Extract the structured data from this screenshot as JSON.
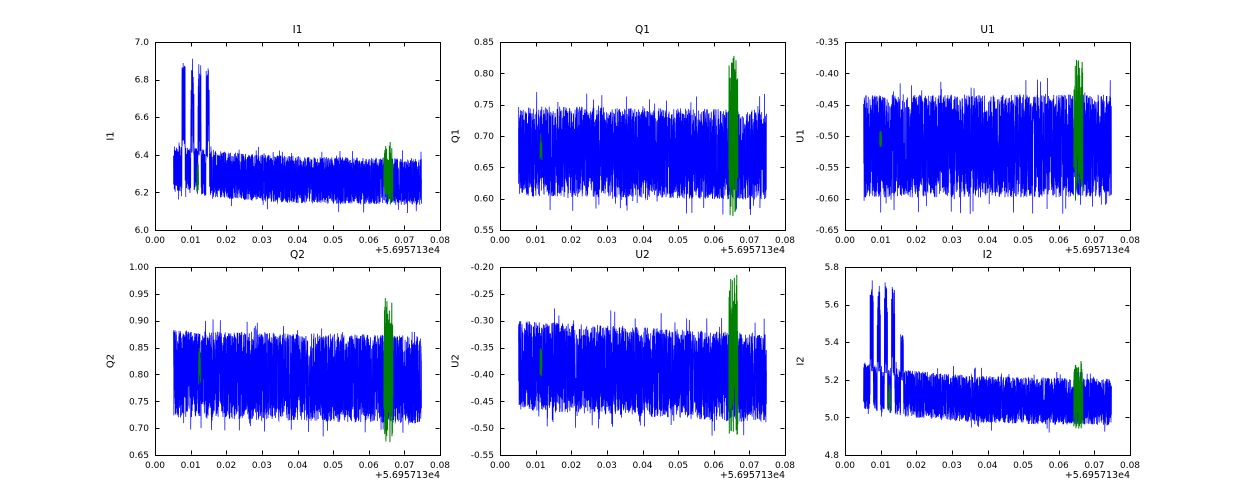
{
  "page": {
    "background": "#ffffff"
  },
  "figure": {
    "axes_color": "#000000",
    "series_color": "#0000ff",
    "event_color": "#007f00",
    "x_axis": {
      "lim": [
        0.0,
        0.08
      ],
      "tick_values": [
        0.0,
        0.01,
        0.02,
        0.03,
        0.04,
        0.05,
        0.06,
        0.07,
        0.08
      ],
      "tick_labels": [
        "0.00",
        "0.01",
        "0.02",
        "0.03",
        "0.04",
        "0.05",
        "0.06",
        "0.07",
        "0.08"
      ],
      "offset_label": "+5.695713e4"
    }
  },
  "chart_data": [
    {
      "id": "I1",
      "type": "line",
      "title": "I1",
      "ylabel": "I1",
      "ylim": [
        6.0,
        7.0
      ],
      "ytick_values": [
        6.0,
        6.2,
        6.4,
        6.6,
        6.8,
        7.0
      ],
      "ytick_labels": [
        "6.0",
        "6.2",
        "6.4",
        "6.6",
        "6.8",
        "7.0"
      ],
      "x_data_range": [
        0.0052,
        0.0748
      ],
      "seed": 101,
      "trend": {
        "kind": "decay",
        "y_start": 6.33,
        "y_end": 6.255,
        "tau": 0.02
      },
      "noise_amp": 0.125,
      "pulses": [
        {
          "x": 0.008,
          "w": 0.0009,
          "top": 6.9
        },
        {
          "x": 0.0105,
          "w": 0.0009,
          "top": 6.92
        },
        {
          "x": 0.0125,
          "w": 0.0009,
          "top": 6.9
        },
        {
          "x": 0.0148,
          "w": 0.0009,
          "top": 6.86
        }
      ],
      "green_events": [
        {
          "x": 0.012,
          "w": 0.0004,
          "ymin": 6.2,
          "ymax": 6.38
        },
        {
          "x": 0.0655,
          "w": 0.0025,
          "ymin": 6.13,
          "ymax": 6.47
        }
      ]
    },
    {
      "id": "Q1",
      "type": "line",
      "title": "Q1",
      "ylabel": "Q1",
      "ylim": [
        0.55,
        0.85
      ],
      "ytick_values": [
        0.55,
        0.6,
        0.65,
        0.7,
        0.75,
        0.8,
        0.85
      ],
      "ytick_labels": [
        "0.55",
        "0.60",
        "0.65",
        "0.70",
        "0.75",
        "0.80",
        "0.85"
      ],
      "x_data_range": [
        0.0052,
        0.0748
      ],
      "seed": 102,
      "trend": {
        "kind": "linear",
        "y_start": 0.676,
        "y_end": 0.67
      },
      "noise_amp": 0.072,
      "pulses": [],
      "green_events": [
        {
          "x": 0.0115,
          "w": 0.0005,
          "ymin": 0.655,
          "ymax": 0.705
        },
        {
          "x": 0.0655,
          "w": 0.0025,
          "ymin": 0.572,
          "ymax": 0.828
        }
      ]
    },
    {
      "id": "U1",
      "type": "line",
      "title": "U1",
      "ylabel": "U1",
      "ylim": [
        -0.65,
        -0.35
      ],
      "ytick_values": [
        -0.65,
        -0.6,
        -0.55,
        -0.5,
        -0.45,
        -0.4,
        -0.35
      ],
      "ytick_labels": [
        "-0.65",
        "-0.60",
        "-0.55",
        "-0.50",
        "-0.45",
        "-0.40",
        "-0.35"
      ],
      "x_data_range": [
        0.0052,
        0.0748
      ],
      "seed": 103,
      "trend": {
        "kind": "linear",
        "y_start": -0.516,
        "y_end": -0.516
      },
      "noise_amp": 0.082,
      "pulses": [],
      "green_events": [
        {
          "x": 0.01,
          "w": 0.0005,
          "ymin": -0.52,
          "ymax": -0.487
        },
        {
          "x": 0.0655,
          "w": 0.0025,
          "ymin": -0.605,
          "ymax": -0.378
        }
      ]
    },
    {
      "id": "Q2",
      "type": "line",
      "title": "Q2",
      "ylabel": "Q2",
      "ylim": [
        0.65,
        1.0
      ],
      "ytick_values": [
        0.65,
        0.7,
        0.75,
        0.8,
        0.85,
        0.9,
        0.95,
        1.0
      ],
      "ytick_labels": [
        "0.65",
        "0.70",
        "0.75",
        "0.80",
        "0.85",
        "0.90",
        "0.95",
        "1.00"
      ],
      "x_data_range": [
        0.0052,
        0.0748
      ],
      "seed": 104,
      "trend": {
        "kind": "linear",
        "y_start": 0.801,
        "y_end": 0.79
      },
      "noise_amp": 0.082,
      "pulses": [],
      "green_events": [
        {
          "x": 0.0125,
          "w": 0.0005,
          "ymin": 0.78,
          "ymax": 0.85
        },
        {
          "x": 0.0655,
          "w": 0.0025,
          "ymin": 0.672,
          "ymax": 0.958
        }
      ]
    },
    {
      "id": "U2",
      "type": "line",
      "title": "U2",
      "ylabel": "U2",
      "ylim": [
        -0.55,
        -0.2
      ],
      "ytick_values": [
        -0.55,
        -0.5,
        -0.45,
        -0.4,
        -0.35,
        -0.3,
        -0.25,
        -0.2
      ],
      "ytick_labels": [
        "-0.55",
        "-0.50",
        "-0.45",
        "-0.40",
        "-0.35",
        "-0.30",
        "-0.25",
        "-0.20"
      ],
      "x_data_range": [
        0.0052,
        0.0748
      ],
      "seed": 105,
      "trend": {
        "kind": "linear",
        "y_start": -0.383,
        "y_end": -0.408
      },
      "noise_amp": 0.083,
      "pulses": [],
      "green_events": [
        {
          "x": 0.0115,
          "w": 0.0005,
          "ymin": -0.405,
          "ymax": -0.345
        },
        {
          "x": 0.0655,
          "w": 0.0025,
          "ymin": -0.523,
          "ymax": -0.212
        }
      ]
    },
    {
      "id": "I2",
      "type": "line",
      "title": "I2",
      "ylabel": "I2",
      "ylim": [
        4.8,
        5.8
      ],
      "ytick_values": [
        4.8,
        5.0,
        5.2,
        5.4,
        5.6,
        5.8
      ],
      "ytick_labels": [
        "4.8",
        "5.0",
        "5.2",
        "5.4",
        "5.6",
        "5.8"
      ],
      "x_data_range": [
        0.0052,
        0.0748
      ],
      "seed": 106,
      "trend": {
        "kind": "decay",
        "y_start": 5.17,
        "y_end": 5.08,
        "tau": 0.02
      },
      "noise_amp": 0.125,
      "pulses": [
        {
          "x": 0.0075,
          "w": 0.0009,
          "top": 5.73
        },
        {
          "x": 0.0095,
          "w": 0.0009,
          "top": 5.72
        },
        {
          "x": 0.0115,
          "w": 0.0009,
          "top": 5.73
        },
        {
          "x": 0.0135,
          "w": 0.0009,
          "top": 5.7
        },
        {
          "x": 0.016,
          "w": 0.0008,
          "top": 5.45
        }
      ],
      "green_events": [
        {
          "x": 0.0125,
          "w": 0.0005,
          "ymin": 5.02,
          "ymax": 5.2
        },
        {
          "x": 0.0655,
          "w": 0.0025,
          "ymin": 4.94,
          "ymax": 5.3
        }
      ]
    }
  ]
}
